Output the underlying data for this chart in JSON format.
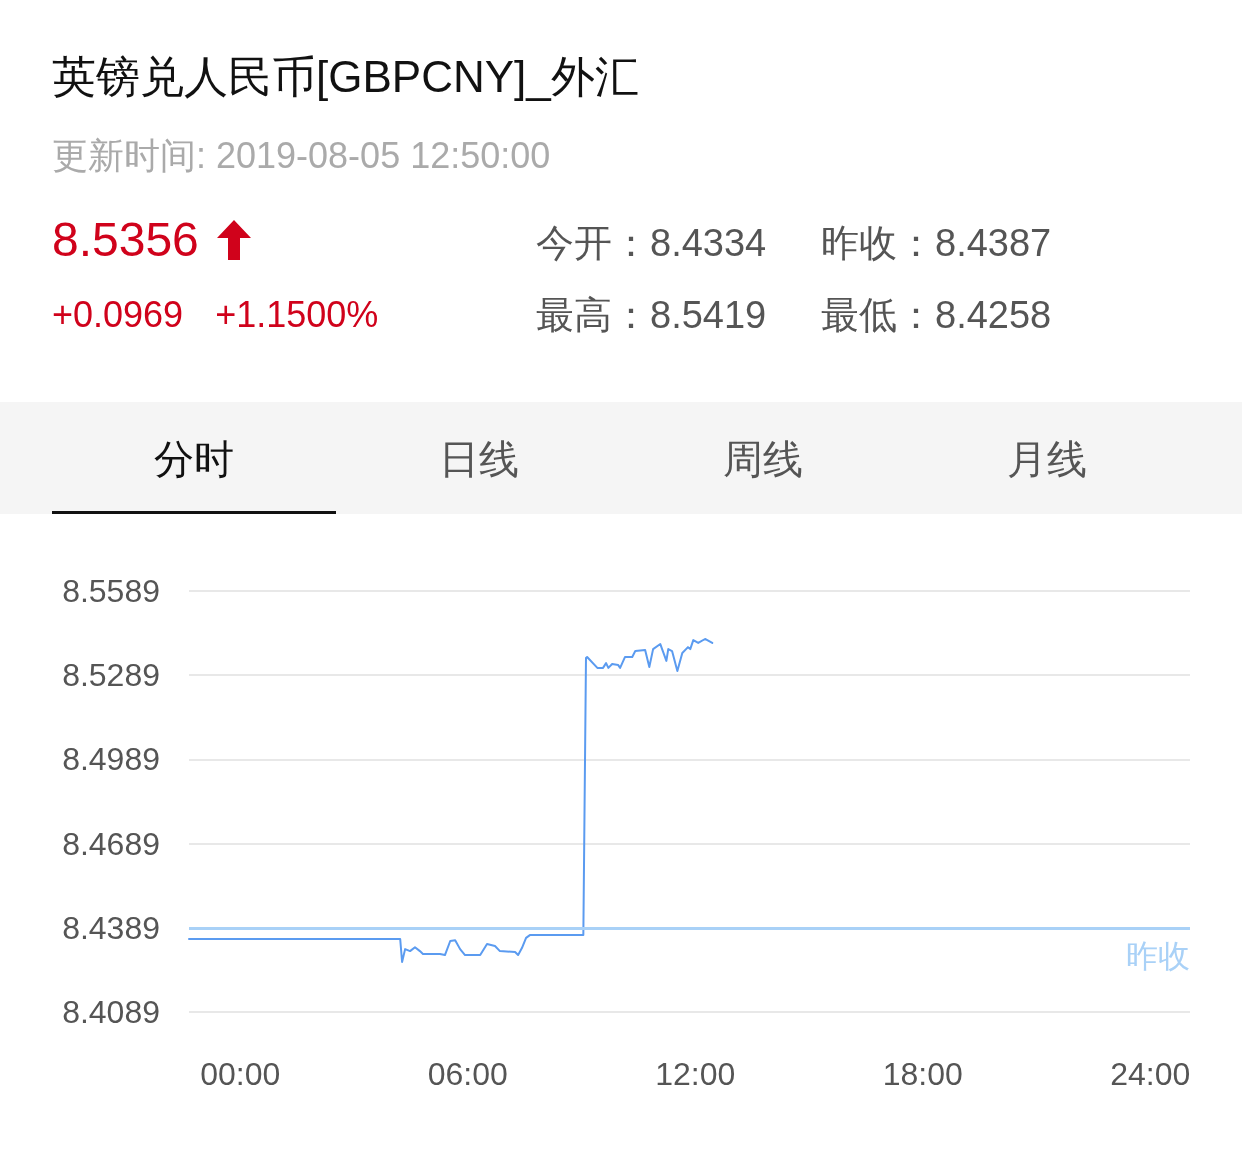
{
  "chart_data": {
    "type": "line",
    "title": "英镑兑人民币[GBPCNY]_外汇",
    "subtitle": "更新时间: 2019-08-05 12:50:00",
    "annotations": [
      "8.5356",
      "+0.0969",
      "+1.1500%",
      "今开：8.4334",
      "昨收：8.4387",
      "最高：8.5419",
      "最低：8.4258",
      "分时",
      "日线",
      "周线",
      "月线"
    ],
    "x": [
      -1.35,
      4.22,
      4.27,
      4.35,
      4.48,
      4.61,
      4.74,
      4.82,
      5.27,
      5.4,
      5.54,
      5.67,
      5.8,
      5.93,
      6.33,
      6.51,
      6.72,
      6.85,
      7.25,
      7.33,
      7.43,
      7.54,
      7.64,
      9.05,
      9.12,
      9.15,
      9.42,
      9.57,
      9.65,
      9.71,
      9.81,
      9.97,
      10.02,
      10.15,
      10.34,
      10.42,
      10.68,
      10.79,
      10.89,
      11.08,
      11.24,
      11.29,
      11.39,
      11.53,
      11.66,
      11.81,
      11.87,
      11.95,
      12.08,
      12.26,
      12.45
    ],
    "series": [
      {
        "color": "#5b9bf0",
        "values": [
          8.4349,
          8.4349,
          8.4267,
          8.4313,
          8.4306,
          8.432,
          8.4306,
          8.4296,
          8.4296,
          8.4292,
          8.4342,
          8.4345,
          8.4313,
          8.4292,
          8.4292,
          8.4331,
          8.4324,
          8.4306,
          8.4303,
          8.4292,
          8.4317,
          8.4353,
          8.4363,
          8.4363,
          8.535,
          8.5354,
          8.5315,
          8.5315,
          8.5332,
          8.5315,
          8.5329,
          8.5325,
          8.5315,
          8.5354,
          8.5354,
          8.5375,
          8.5379,
          8.5318,
          8.5382,
          8.54,
          8.534,
          8.5382,
          8.5375,
          8.5304,
          8.5368,
          8.5389,
          8.5382,
          8.5414,
          8.5404,
          8.5418,
          8.5404
        ]
      }
    ],
    "xlim": [
      -1.35,
      25.05
    ],
    "xticks": [
      {
        "value": 0,
        "label": "00:00"
      },
      {
        "value": 6,
        "label": "06:00"
      },
      {
        "value": 12,
        "label": "12:00"
      },
      {
        "value": 18,
        "label": "18:00"
      },
      {
        "value": 24,
        "label": "24:00"
      }
    ],
    "ylim": [
      8.4089,
      8.5589
    ],
    "yticks": [
      8.4089,
      8.4389,
      8.4689,
      8.4989,
      8.5289,
      8.5589
    ],
    "ref_lines": [
      {
        "axis": "y",
        "value": 8.4387,
        "label": "昨收",
        "color": "#a9d1f7"
      }
    ],
    "grid": "y",
    "marker": "none",
    "line_style": "solid"
  }
}
